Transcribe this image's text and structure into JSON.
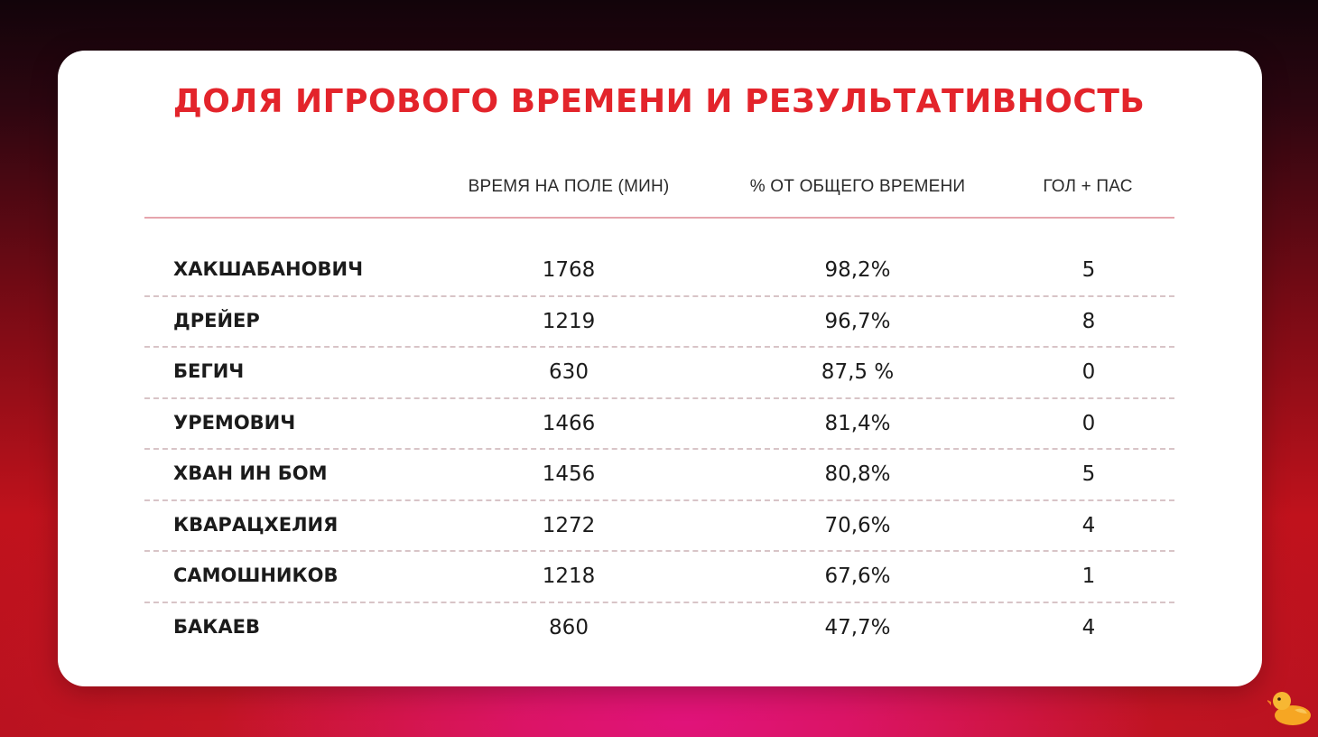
{
  "title": "ДОЛЯ ИГРОВОГО ВРЕМЕНИ И РЕЗУЛЬТАТИВНОСТЬ",
  "columns": [
    "",
    "ВРЕМЯ НА ПОЛЕ (МИН)",
    "% ОТ ОБЩЕГО ВРЕМЕНИ",
    "ГОЛ + ПАС"
  ],
  "rows": [
    {
      "name": "ХАКШАБАНОВИЧ",
      "minutes": "1768",
      "percent": "98,2%",
      "goals_assists": "5"
    },
    {
      "name": "ДРЕЙЕР",
      "minutes": "1219",
      "percent": "96,7%",
      "goals_assists": "8"
    },
    {
      "name": "БЕГИЧ",
      "minutes": "630",
      "percent": "87,5 %",
      "goals_assists": "0"
    },
    {
      "name": "УРЕМОВИЧ",
      "minutes": "1466",
      "percent": "81,4%",
      "goals_assists": "0"
    },
    {
      "name": "ХВАН ИН БОМ",
      "minutes": "1456",
      "percent": "80,8%",
      "goals_assists": "5"
    },
    {
      "name": "КВАРАЦХЕЛИЯ",
      "minutes": "1272",
      "percent": "70,6%",
      "goals_assists": "4"
    },
    {
      "name": "САМОШНИКОВ",
      "minutes": "1218",
      "percent": "67,6%",
      "goals_assists": "1"
    },
    {
      "name": "БАКАЕВ",
      "minutes": "860",
      "percent": "47,7%",
      "goals_assists": "4"
    }
  ],
  "colors": {
    "title": "#e3242b",
    "header_rule": "#e6a5ad",
    "row_divider": "#d8c4c7",
    "card": "#ffffff",
    "background_dark": "#12040a",
    "background_red": "#c0121c",
    "background_magenta": "#e0137a"
  },
  "watermark_icon": "duck-icon"
}
